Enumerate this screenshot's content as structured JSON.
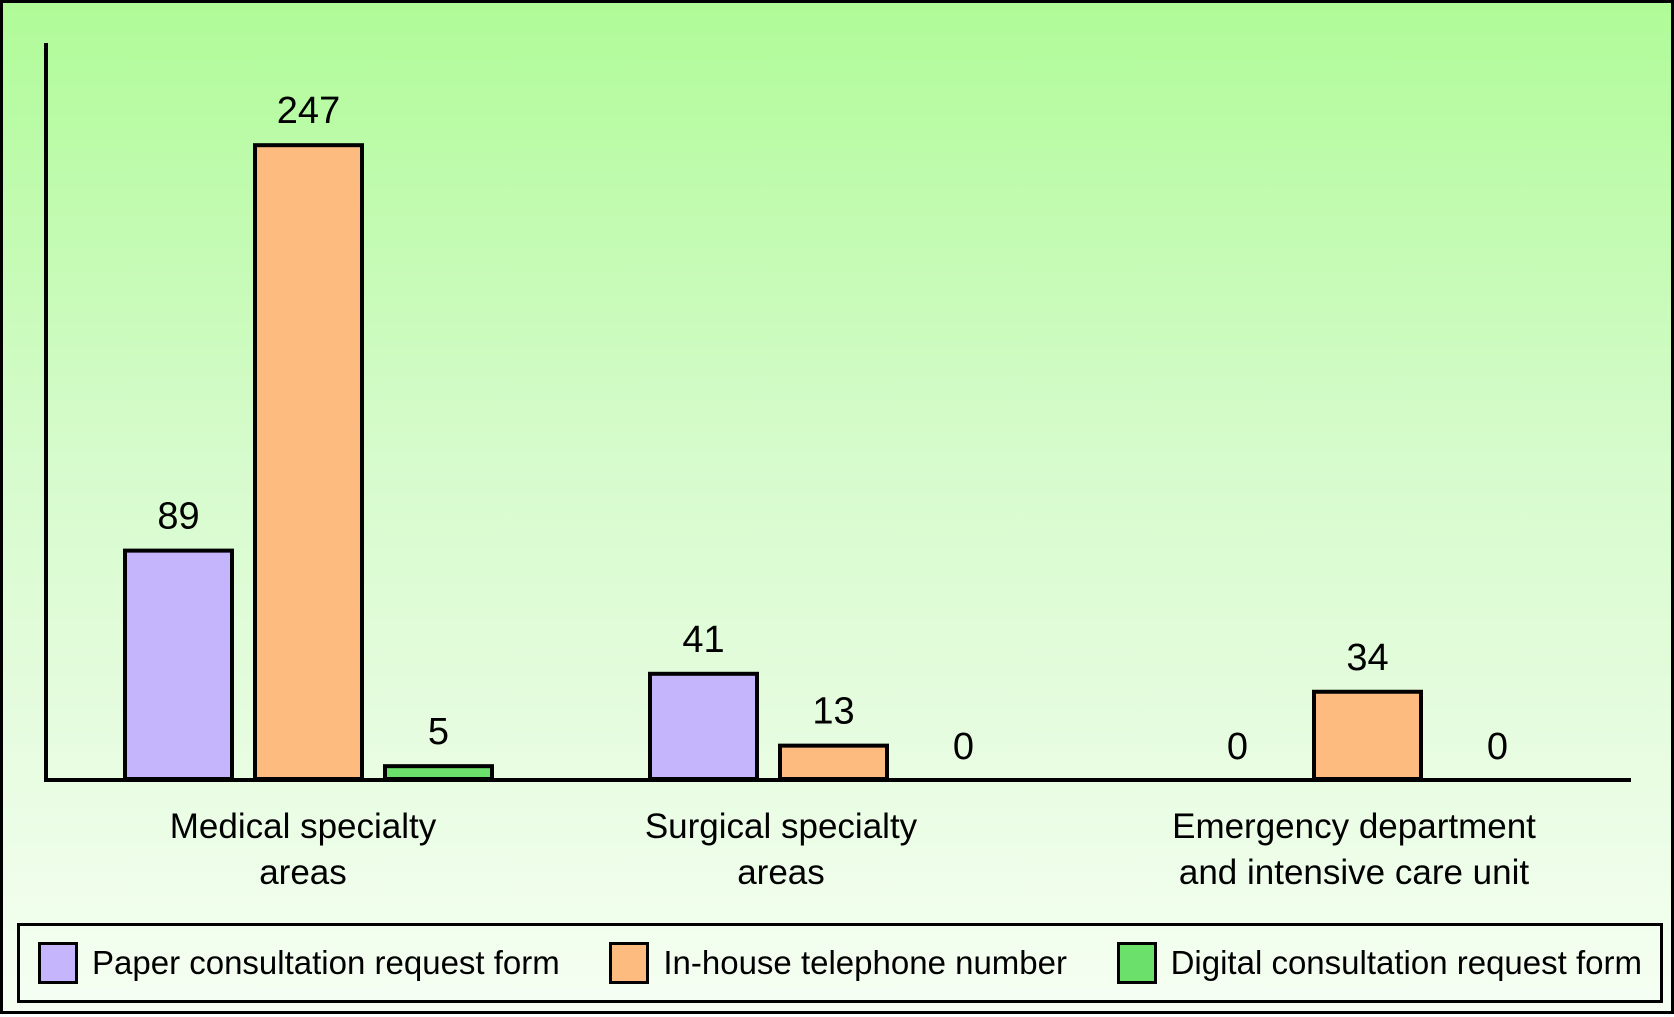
{
  "chart_data": {
    "type": "bar",
    "categories": [
      [
        "Medical specialty",
        "areas"
      ],
      [
        "Surgical specialty",
        "areas"
      ],
      [
        "Emergency department",
        "and intensive care unit"
      ]
    ],
    "series": [
      {
        "name": "Paper consultation request form",
        "color": "#c4b5fd",
        "values": [
          89,
          41,
          0
        ]
      },
      {
        "name": "In-house telephone number",
        "color": "#fdbb80",
        "values": [
          247,
          13,
          34
        ]
      },
      {
        "name": "Digital consultation request form",
        "color": "#6be06b",
        "values": [
          5,
          0,
          0
        ]
      }
    ],
    "value_labels": [
      [
        "89",
        "41",
        "0"
      ],
      [
        "247",
        "13",
        "34"
      ],
      [
        "5",
        "0",
        "0"
      ]
    ],
    "title": "",
    "xlabel": "",
    "ylabel": "",
    "ylim": [
      0,
      265
    ],
    "grid": false,
    "legend_position": "bottom"
  }
}
